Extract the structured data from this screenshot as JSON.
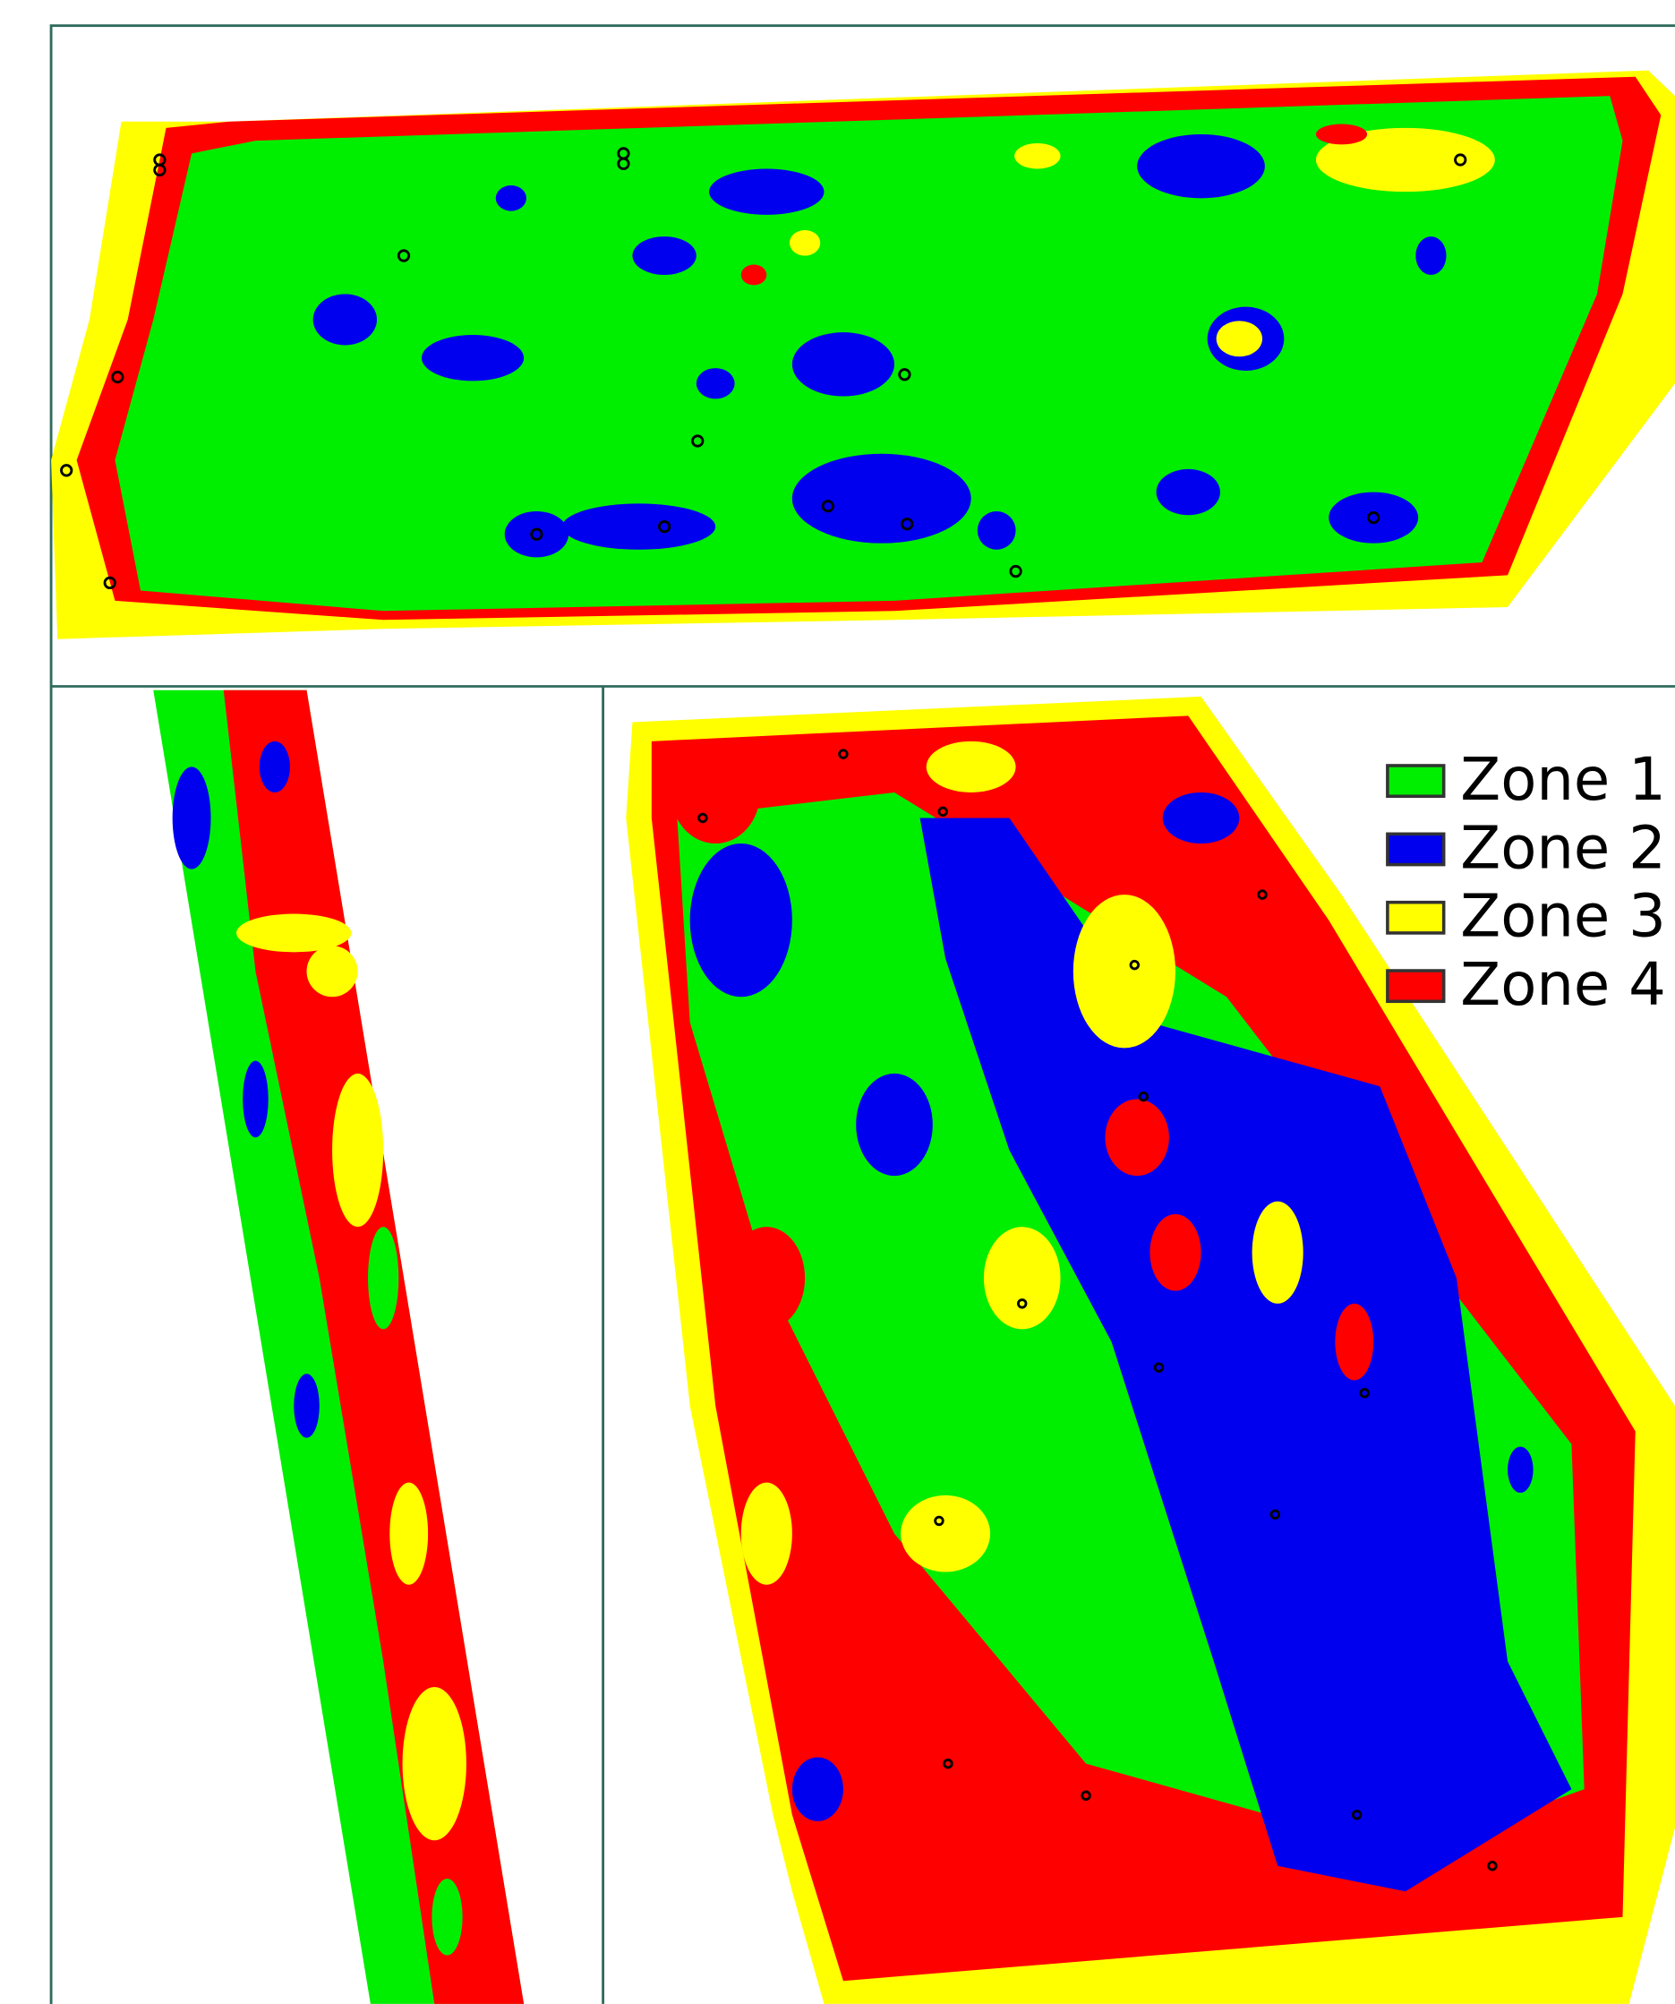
{
  "legend": {
    "items": [
      {
        "label": "Zone 1",
        "color": "#00ee00"
      },
      {
        "label": "Zone 2",
        "color": "#0000ee"
      },
      {
        "label": "Zone 3",
        "color": "#ffff00"
      },
      {
        "label": "Zone 4",
        "color": "#ff0000"
      }
    ]
  }
}
